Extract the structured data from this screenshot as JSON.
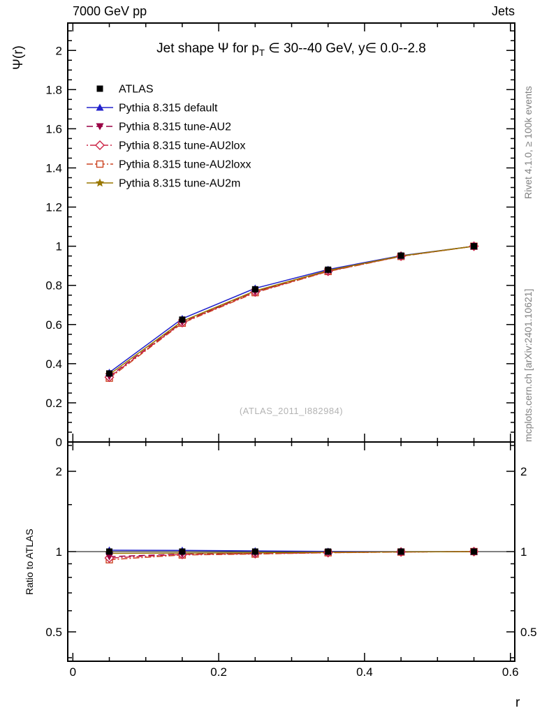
{
  "chart_data": {
    "type": "line",
    "header": {
      "top_left": "7000 GeV pp",
      "top_right": "Jets"
    },
    "title_prefix": "Jet shape Ψ for p",
    "title_sub": "T",
    "title_suffix": " ∈ 30--40 GeV, y∈ 0.0--2.8",
    "ylabel": "Ψ(r)",
    "xlabel": "r",
    "ratio_ylabel": "Ratio to ATLAS",
    "watermark": "(ATLAS_2011_I882984)",
    "side_label_top": "Rivet 4.1.0, ≥ 100k events",
    "side_label_bottom": "mcplots.cern.ch [arXiv:2401.10621]",
    "legend_position": "top-left-inside",
    "grid": false,
    "x": [
      0.05,
      0.15,
      0.25,
      0.35,
      0.45,
      0.55
    ],
    "series": [
      {
        "name": "ATLAS",
        "color": "#000000",
        "marker": "square-filled",
        "line": "none",
        "values": [
          0.35,
          0.625,
          0.78,
          0.88,
          0.952,
          1.0
        ],
        "ratio": [
          1.0,
          1.0,
          1.0,
          1.0,
          1.0,
          1.0
        ]
      },
      {
        "name": "Pythia 8.315 default",
        "color": "#2222cc",
        "marker": "triangle-up-filled",
        "line": "solid",
        "values": [
          0.355,
          0.63,
          0.785,
          0.881,
          0.952,
          1.0
        ],
        "ratio": [
          1.012,
          1.01,
          1.006,
          1.001,
          1.0,
          1.0
        ]
      },
      {
        "name": "Pythia 8.315 tune-AU2",
        "color": "#990044",
        "marker": "triangle-down-filled",
        "line": "dashed",
        "values": [
          0.335,
          0.612,
          0.767,
          0.873,
          0.949,
          1.0
        ],
        "ratio": [
          0.957,
          0.979,
          0.983,
          0.992,
          0.997,
          1.0
        ]
      },
      {
        "name": "Pythia 8.315 tune-AU2lox",
        "color": "#cc2244",
        "marker": "diamond-open",
        "line": "dashdot",
        "values": [
          0.331,
          0.61,
          0.766,
          0.872,
          0.949,
          1.0
        ],
        "ratio": [
          0.946,
          0.976,
          0.982,
          0.991,
          0.997,
          1.0
        ]
      },
      {
        "name": "Pythia 8.315 tune-AU2loxx",
        "color": "#cc4422",
        "marker": "square-open",
        "line": "dashdot2",
        "values": [
          0.326,
          0.607,
          0.763,
          0.871,
          0.948,
          1.0
        ],
        "ratio": [
          0.932,
          0.971,
          0.979,
          0.99,
          0.996,
          1.0
        ]
      },
      {
        "name": "Pythia 8.315 tune-AU2m",
        "color": "#997700",
        "marker": "star-filled",
        "line": "solid",
        "values": [
          0.345,
          0.617,
          0.772,
          0.876,
          0.95,
          1.0
        ],
        "ratio": [
          0.985,
          0.987,
          0.99,
          0.995,
          0.998,
          1.0
        ]
      }
    ],
    "axes": {
      "x": {
        "min": -0.007,
        "max": 0.606,
        "major_ticks": [
          0,
          0.2,
          0.4,
          0.6
        ],
        "minor_step": 0.05
      },
      "y_main": {
        "min": 0,
        "max": 2.14,
        "major_ticks": [
          0,
          0.2,
          0.4,
          0.6,
          0.8,
          1,
          1.2,
          1.4,
          1.6,
          1.8,
          2
        ],
        "minor_step": 0.05
      },
      "y_ratio": {
        "scale": "log",
        "min": 0.388,
        "max": 2.576,
        "major_ticks": [
          0.5,
          1,
          2
        ],
        "minor_ticks": [
          0.4,
          0.6,
          0.7,
          0.8,
          0.9,
          1.5,
          2.5
        ],
        "reference_line": 1
      }
    }
  }
}
